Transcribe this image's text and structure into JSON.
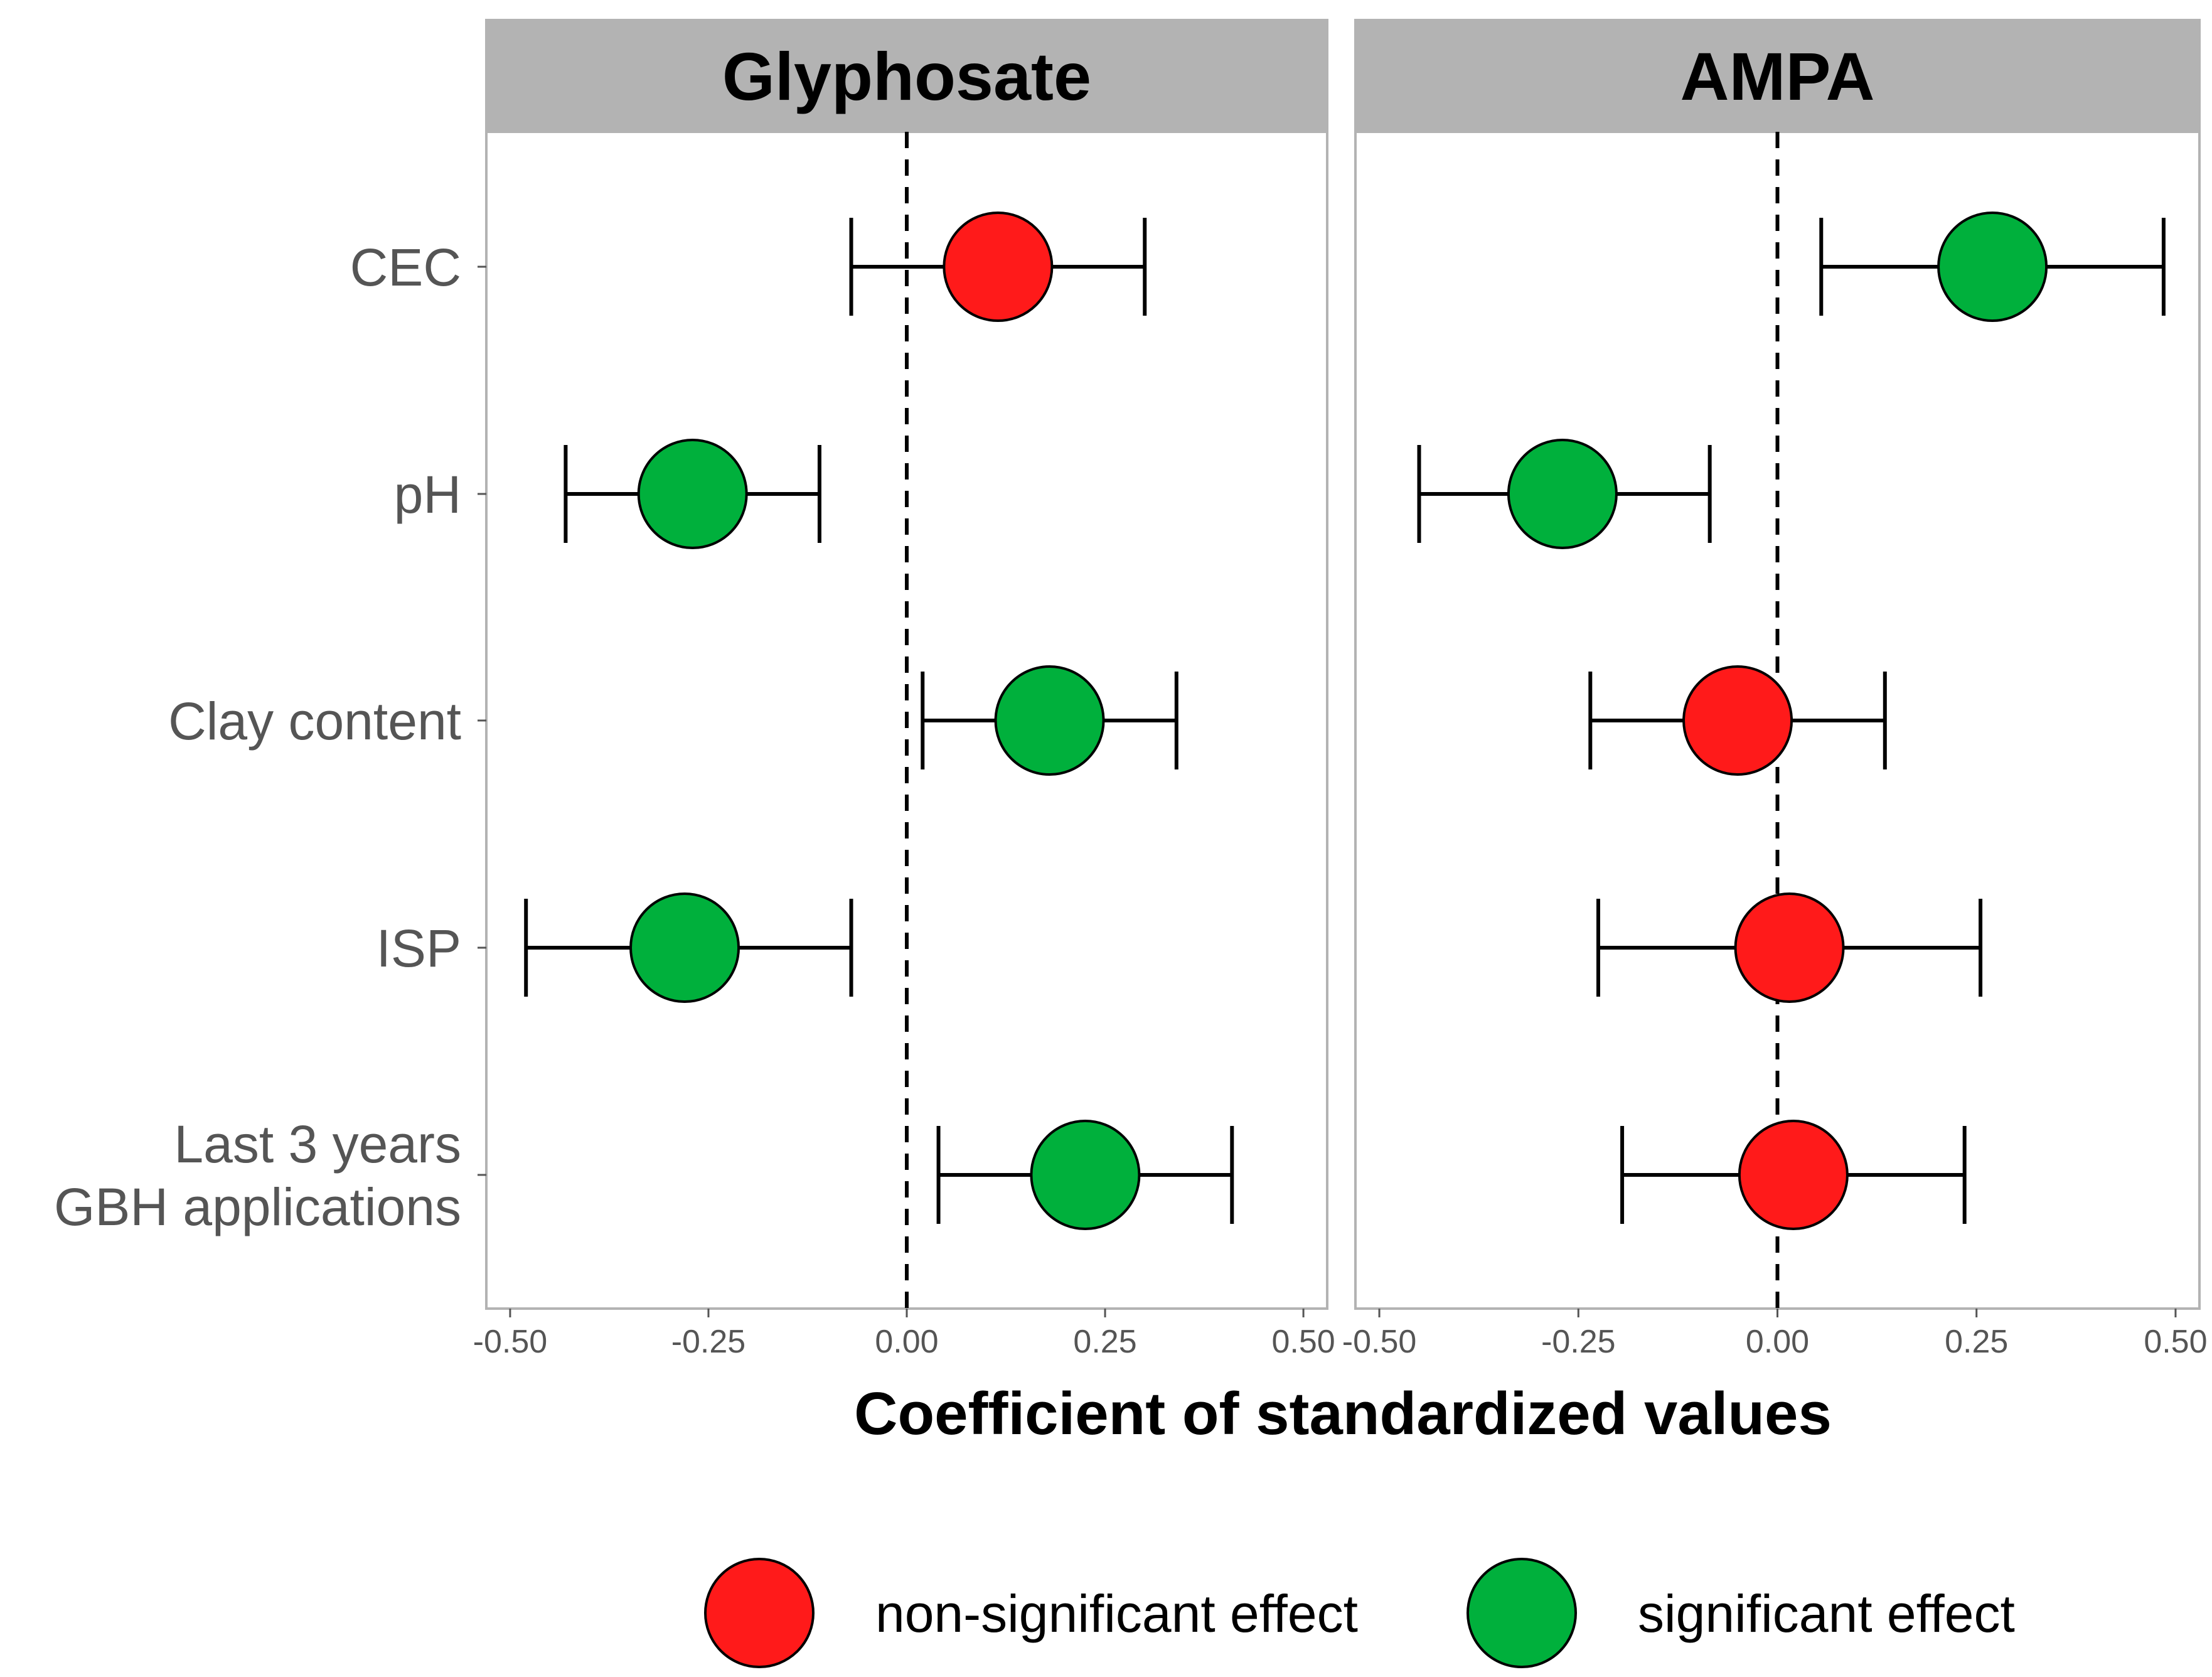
{
  "chart_data": {
    "type": "dot-and-whisker",
    "xlabel": "Coefficient of standardized values",
    "xlim": [
      -0.53,
      0.53
    ],
    "xticks": [
      -0.5,
      -0.25,
      0.0,
      0.25,
      0.5
    ],
    "xtick_labels": [
      "-0.50",
      "-0.25",
      "0.00",
      "0.25",
      "0.50"
    ],
    "reference_line": 0.0,
    "categories": [
      "CEC",
      "pH",
      "Clay content",
      "ISP",
      "Last 3 years GBH applications"
    ],
    "category_lines": [
      [
        "CEC"
      ],
      [
        "pH"
      ],
      [
        "Clay content"
      ],
      [
        "ISP"
      ],
      [
        "Last 3 years",
        "GBH applications"
      ]
    ],
    "panels": [
      {
        "title": "Glyphosate",
        "points": [
          {
            "category": "CEC",
            "estimate": 0.115,
            "lower": -0.07,
            "upper": 0.3,
            "significance": "non-significant effect"
          },
          {
            "category": "pH",
            "estimate": -0.27,
            "lower": -0.43,
            "upper": -0.11,
            "significance": "significant effect"
          },
          {
            "category": "Clay content",
            "estimate": 0.18,
            "lower": 0.02,
            "upper": 0.34,
            "significance": "significant effect"
          },
          {
            "category": "ISP",
            "estimate": -0.28,
            "lower": -0.48,
            "upper": -0.07,
            "significance": "significant effect"
          },
          {
            "category": "Last 3 years GBH applications",
            "estimate": 0.225,
            "lower": 0.04,
            "upper": 0.41,
            "significance": "significant effect"
          }
        ]
      },
      {
        "title": "AMPA",
        "points": [
          {
            "category": "CEC",
            "estimate": 0.27,
            "lower": 0.055,
            "upper": 0.485,
            "significance": "significant effect"
          },
          {
            "category": "pH",
            "estimate": -0.27,
            "lower": -0.45,
            "upper": -0.085,
            "significance": "significant effect"
          },
          {
            "category": "Clay content",
            "estimate": -0.05,
            "lower": -0.235,
            "upper": 0.135,
            "significance": "non-significant effect"
          },
          {
            "category": "ISP",
            "estimate": 0.015,
            "lower": -0.225,
            "upper": 0.255,
            "significance": "non-significant effect"
          },
          {
            "category": "Last 3 years GBH applications",
            "estimate": 0.02,
            "lower": -0.195,
            "upper": 0.235,
            "significance": "non-significant effect"
          }
        ]
      }
    ],
    "legend": {
      "position": "bottom",
      "entries": [
        {
          "label": "non-significant effect",
          "color": "#ff1a1a"
        },
        {
          "label": "significant effect",
          "color": "#00b03c"
        }
      ]
    },
    "colors": {
      "strip_background": "#b3b3b3",
      "panel_border": "#b3b3b3",
      "axis_text": "#555555"
    }
  }
}
